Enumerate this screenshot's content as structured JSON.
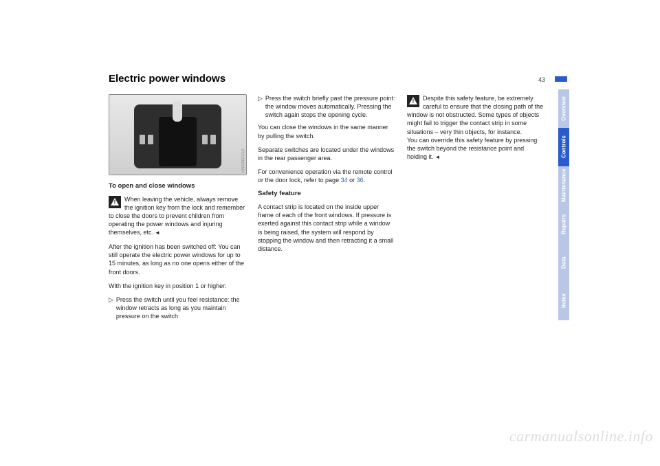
{
  "page": {
    "title": "Electric power windows",
    "number": "43",
    "figure_label": "MV08680MA"
  },
  "col1": {
    "subhead": "To open and close windows",
    "warn_para": "When leaving the vehicle, always remove the ignition key from the lock and remember to close the doors to prevent children from operating the power windows and injuring themselves, etc.",
    "p2": "After the ignition has been switched off: You can still operate the electric power windows for up to 15 minutes, as long as no one opens either of the front doors.",
    "p3": "With the ignition key in position 1 or higher:",
    "b1": "Press the switch until you feel resistance: the window retracts as long as you maintain pressure on the switch"
  },
  "col2": {
    "b1": "Press the switch briefly past the pressure point: the window moves automatically. Pressing the switch again stops the opening cycle.",
    "p1": "You can close the windows in the same manner by pulling the switch.",
    "p2": "Separate switches are located under the windows in the rear passenger area.",
    "p3_a": "For convenience operation via the remote control or the door lock, refer to page ",
    "p3_link1": "34",
    "p3_mid": " or ",
    "p3_link2": "36",
    "p3_end": ".",
    "subhead": "Safety feature",
    "p4": "A contact strip is located on the inside upper frame of each of the front windows. If pressure is exerted against this contact strip while a window is being raised, the system will respond by stopping the window and then retracting it a small distance."
  },
  "col3": {
    "warn_para_a": "Despite this safety feature, be extremely careful to ensure that the closing path of the window is not obstructed. Some types of objects might fail to trigger the contact strip in some situations – very thin objects, for instance.",
    "warn_para_b": "You can override this safety feature by pressing the switch beyond the resistance point and holding it."
  },
  "tabs": [
    {
      "label": "Overview",
      "bg": "#b9c7e6"
    },
    {
      "label": "Controls",
      "bg": "#2a5bcc"
    },
    {
      "label": "Maintenance",
      "bg": "#b9c7e6"
    },
    {
      "label": "Repairs",
      "bg": "#b9c7e6"
    },
    {
      "label": "Data",
      "bg": "#b9c7e6"
    },
    {
      "label": "Index",
      "bg": "#b9c7e6"
    }
  ],
  "watermark": "carmanualsonline.info"
}
